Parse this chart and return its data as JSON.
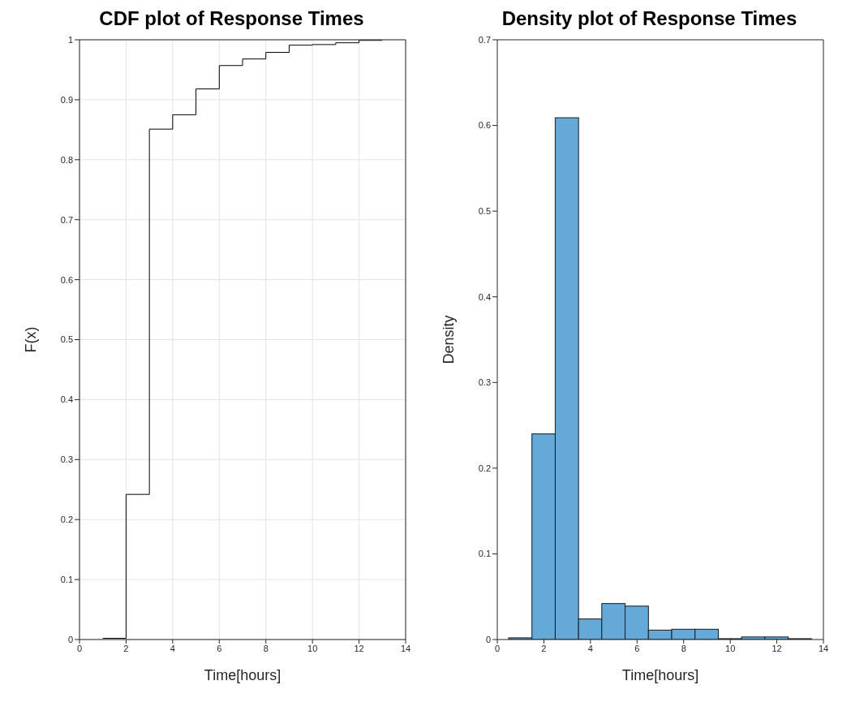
{
  "chart_data": [
    {
      "type": "step",
      "title": "CDF plot of Response Times",
      "xlabel": "Time[hours]",
      "ylabel": "F(x)",
      "x": [
        1,
        2,
        3,
        4,
        5,
        6,
        7,
        8,
        9,
        10,
        11,
        12,
        13
      ],
      "values": [
        0.002,
        0.242,
        0.851,
        0.875,
        0.918,
        0.957,
        0.968,
        0.979,
        0.991,
        0.992,
        0.995,
        0.999,
        0.999
      ],
      "color": "#000000",
      "xlim": [
        0,
        14
      ],
      "xticks": [
        0,
        2,
        4,
        6,
        8,
        10,
        12,
        14
      ],
      "ylim": [
        0,
        1
      ],
      "yticks": [
        0,
        0.1,
        0.2,
        0.3,
        0.4,
        0.5,
        0.6,
        0.7,
        0.8,
        0.9,
        1
      ],
      "grid": true
    },
    {
      "type": "histogram",
      "title": "Density plot of Response Times",
      "xlabel": "Time[hours]",
      "ylabel": "Density",
      "bins": [
        0.5,
        1.5,
        2.5,
        3.5,
        4.5,
        5.5,
        6.5,
        7.5,
        8.5,
        9.5,
        10.5,
        11.5,
        12.5,
        13.5
      ],
      "values": [
        0.002,
        0.24,
        0.609,
        0.024,
        0.042,
        0.039,
        0.011,
        0.012,
        0.012,
        0.001,
        0.003,
        0.003,
        0.001
      ],
      "color": "#64a9d8",
      "xlim": [
        0,
        14
      ],
      "xticks": [
        0,
        2,
        4,
        6,
        8,
        10,
        12,
        14
      ],
      "ylim": [
        0,
        0.7
      ],
      "yticks": [
        0,
        0.1,
        0.2,
        0.3,
        0.4,
        0.5,
        0.6,
        0.7
      ],
      "grid": false
    }
  ]
}
